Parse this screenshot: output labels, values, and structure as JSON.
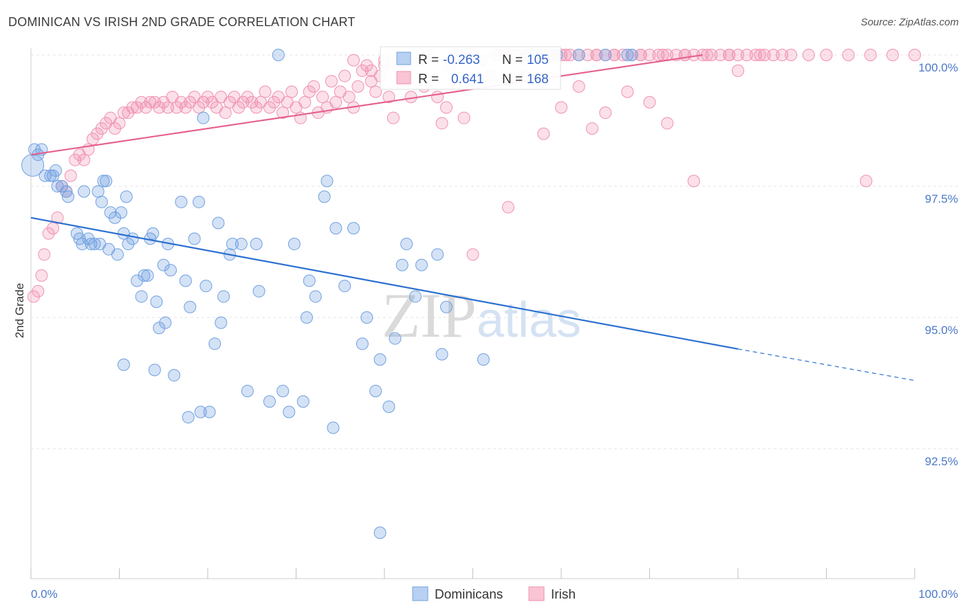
{
  "title": "DOMINICAN VS IRISH 2ND GRADE CORRELATION CHART",
  "source": "Source: ZipAtlas.com",
  "watermark": "ZIPatlas",
  "legend_top": [
    {
      "r_label": "R =",
      "r_value": "-0.263",
      "n_label": "N =",
      "n_value": "105",
      "color": "#6fa0e0"
    },
    {
      "r_label": "R =",
      "r_value": "0.641",
      "n_label": "N =",
      "n_value": "168",
      "color": "#f090b0"
    }
  ],
  "legend_bottom": [
    "Dominicans",
    "Irish"
  ],
  "chart_data": {
    "type": "scatter",
    "ylabel": "2nd Grade",
    "x_tick_labels": [
      "0.0%",
      "100.0%"
    ],
    "y_tick_labels": [
      "100.0%",
      "97.5%",
      "95.0%",
      "92.5%"
    ],
    "xlim": [
      0,
      100
    ],
    "ylim": [
      90.4,
      100.4
    ],
    "grid": true,
    "legend_position": "top-center",
    "colors": {
      "dominicans": "#6fa0e0",
      "irish": "#f090b0",
      "dominicans_line": "#2a6fd0",
      "irish_line": "#e5608e"
    },
    "series": [
      {
        "name": "Dominicans",
        "trend": {
          "x0": 0,
          "y0": 96.9,
          "x1": 80,
          "y1": 94.4,
          "dashed_to_x": 100,
          "dashed_to_y": 93.8
        },
        "points": [
          [
            0.2,
            97.9
          ],
          [
            0.4,
            98.2
          ],
          [
            0.8,
            98.1
          ],
          [
            1.2,
            98.2
          ],
          [
            1.6,
            97.7
          ],
          [
            2.2,
            97.7
          ],
          [
            2.5,
            97.7
          ],
          [
            2.8,
            97.8
          ],
          [
            3.0,
            97.5
          ],
          [
            3.5,
            97.5
          ],
          [
            4.0,
            97.4
          ],
          [
            4.2,
            97.3
          ],
          [
            5.2,
            96.6
          ],
          [
            5.5,
            96.5
          ],
          [
            5.8,
            96.4
          ],
          [
            6.0,
            97.4
          ],
          [
            6.5,
            96.5
          ],
          [
            6.8,
            96.4
          ],
          [
            7.2,
            96.4
          ],
          [
            7.6,
            97.4
          ],
          [
            7.8,
            96.4
          ],
          [
            8.0,
            97.2
          ],
          [
            8.2,
            97.6
          ],
          [
            8.5,
            97.6
          ],
          [
            8.8,
            96.3
          ],
          [
            9.0,
            97.0
          ],
          [
            9.5,
            96.9
          ],
          [
            9.8,
            96.2
          ],
          [
            10.2,
            97.0
          ],
          [
            10.5,
            96.6
          ],
          [
            10.8,
            97.3
          ],
          [
            11.0,
            96.4
          ],
          [
            11.5,
            96.5
          ],
          [
            12.0,
            95.7
          ],
          [
            12.5,
            95.4
          ],
          [
            12.8,
            95.8
          ],
          [
            13.2,
            95.8
          ],
          [
            13.5,
            96.5
          ],
          [
            13.8,
            96.6
          ],
          [
            14.2,
            95.3
          ],
          [
            14.5,
            94.8
          ],
          [
            15.0,
            96.0
          ],
          [
            15.2,
            94.9
          ],
          [
            15.5,
            96.4
          ],
          [
            15.8,
            95.9
          ],
          [
            16.2,
            93.9
          ],
          [
            17.0,
            97.2
          ],
          [
            17.5,
            95.7
          ],
          [
            17.8,
            93.1
          ],
          [
            18.0,
            95.2
          ],
          [
            18.5,
            96.5
          ],
          [
            19.0,
            97.2
          ],
          [
            19.2,
            93.2
          ],
          [
            19.5,
            98.8
          ],
          [
            19.8,
            95.6
          ],
          [
            20.2,
            93.2
          ],
          [
            20.8,
            94.5
          ],
          [
            21.2,
            96.8
          ],
          [
            21.5,
            94.9
          ],
          [
            21.8,
            95.4
          ],
          [
            22.5,
            96.2
          ],
          [
            22.8,
            96.4
          ],
          [
            23.8,
            96.4
          ],
          [
            24.5,
            93.6
          ],
          [
            25.5,
            96.4
          ],
          [
            25.8,
            95.5
          ],
          [
            27.0,
            93.4
          ],
          [
            28.5,
            93.6
          ],
          [
            28.0,
            100.0
          ],
          [
            29.2,
            93.2
          ],
          [
            29.8,
            96.4
          ],
          [
            30.8,
            93.4
          ],
          [
            31.5,
            95.7
          ],
          [
            31.2,
            95.0
          ],
          [
            32.2,
            95.4
          ],
          [
            33.2,
            97.3
          ],
          [
            33.5,
            97.6
          ],
          [
            34.2,
            92.9
          ],
          [
            34.5,
            96.7
          ],
          [
            35.5,
            95.6
          ],
          [
            36.5,
            96.7
          ],
          [
            37.5,
            94.5
          ],
          [
            38.0,
            95.0
          ],
          [
            39.0,
            93.6
          ],
          [
            39.5,
            94.2
          ],
          [
            40.5,
            93.3
          ],
          [
            41.2,
            94.6
          ],
          [
            42.0,
            96.0
          ],
          [
            42.5,
            96.4
          ],
          [
            43.5,
            95.4
          ],
          [
            44.2,
            96.0
          ],
          [
            46.0,
            96.2
          ],
          [
            46.5,
            94.3
          ],
          [
            47.0,
            95.2
          ],
          [
            51.2,
            94.2
          ],
          [
            56.0,
            100.0
          ],
          [
            57.0,
            100.0
          ],
          [
            59.5,
            100.0
          ],
          [
            62.0,
            100.0
          ],
          [
            65.0,
            100.0
          ],
          [
            68.0,
            100.0
          ],
          [
            67.5,
            100.0
          ],
          [
            39.5,
            90.9
          ],
          [
            14.0,
            94.0
          ],
          [
            10.5,
            94.1
          ]
        ]
      },
      {
        "name": "Irish",
        "trend": {
          "x0": 0,
          "y0": 98.1,
          "x1": 76,
          "y1": 100.0
        },
        "points": [
          [
            0.3,
            95.4
          ],
          [
            0.8,
            95.5
          ],
          [
            1.2,
            95.8
          ],
          [
            1.5,
            96.2
          ],
          [
            2.0,
            96.6
          ],
          [
            2.5,
            96.7
          ],
          [
            3.0,
            96.9
          ],
          [
            3.5,
            97.5
          ],
          [
            4.0,
            97.4
          ],
          [
            4.5,
            97.7
          ],
          [
            5.0,
            98.0
          ],
          [
            5.5,
            98.1
          ],
          [
            6.0,
            98.0
          ],
          [
            6.5,
            98.2
          ],
          [
            7.0,
            98.4
          ],
          [
            7.5,
            98.5
          ],
          [
            8.0,
            98.6
          ],
          [
            8.5,
            98.7
          ],
          [
            9.0,
            98.8
          ],
          [
            9.5,
            98.6
          ],
          [
            10.0,
            98.7
          ],
          [
            10.5,
            98.9
          ],
          [
            11.0,
            98.9
          ],
          [
            11.5,
            99.0
          ],
          [
            12.0,
            99.0
          ],
          [
            12.5,
            99.1
          ],
          [
            13.0,
            99.0
          ],
          [
            13.5,
            99.1
          ],
          [
            14.0,
            99.1
          ],
          [
            14.5,
            99.0
          ],
          [
            15.0,
            99.1
          ],
          [
            15.5,
            99.0
          ],
          [
            16.0,
            99.2
          ],
          [
            16.5,
            99.0
          ],
          [
            17.0,
            99.1
          ],
          [
            17.5,
            99.0
          ],
          [
            18.0,
            99.1
          ],
          [
            18.5,
            99.2
          ],
          [
            19.0,
            99.0
          ],
          [
            19.5,
            99.1
          ],
          [
            20.0,
            99.2
          ],
          [
            20.5,
            99.1
          ],
          [
            21.0,
            99.0
          ],
          [
            21.5,
            99.2
          ],
          [
            22.0,
            98.9
          ],
          [
            22.5,
            99.1
          ],
          [
            23.0,
            99.2
          ],
          [
            23.5,
            99.0
          ],
          [
            24.0,
            99.1
          ],
          [
            24.5,
            99.2
          ],
          [
            25.0,
            99.1
          ],
          [
            25.5,
            99.0
          ],
          [
            26.0,
            99.1
          ],
          [
            26.5,
            99.3
          ],
          [
            27.0,
            99.0
          ],
          [
            27.5,
            99.1
          ],
          [
            28.0,
            99.2
          ],
          [
            28.5,
            98.9
          ],
          [
            29.0,
            99.1
          ],
          [
            29.5,
            99.3
          ],
          [
            30.0,
            99.0
          ],
          [
            30.5,
            98.8
          ],
          [
            31.0,
            99.1
          ],
          [
            31.5,
            99.3
          ],
          [
            32.0,
            99.4
          ],
          [
            32.5,
            98.9
          ],
          [
            33.0,
            99.2
          ],
          [
            33.5,
            99.0
          ],
          [
            34.0,
            99.5
          ],
          [
            34.5,
            99.1
          ],
          [
            35.0,
            99.3
          ],
          [
            35.5,
            99.6
          ],
          [
            36.0,
            99.2
          ],
          [
            36.5,
            99.0
          ],
          [
            37.0,
            99.4
          ],
          [
            37.5,
            99.7
          ],
          [
            38.0,
            99.8
          ],
          [
            38.5,
            99.5
          ],
          [
            39.0,
            99.3
          ],
          [
            39.5,
            99.6
          ],
          [
            40.0,
            99.8
          ],
          [
            40.5,
            99.2
          ],
          [
            41.0,
            98.8
          ],
          [
            41.5,
            99.9
          ],
          [
            42.0,
            99.5
          ],
          [
            42.5,
            99.7
          ],
          [
            43.0,
            99.2
          ],
          [
            44.0,
            99.9
          ],
          [
            45.0,
            100.0
          ],
          [
            46.0,
            99.2
          ],
          [
            46.5,
            98.7
          ],
          [
            47.5,
            99.8
          ],
          [
            48.5,
            100.0
          ],
          [
            49.0,
            98.8
          ],
          [
            50.0,
            100.0
          ],
          [
            51.0,
            99.9
          ],
          [
            52.0,
            99.6
          ],
          [
            52.5,
            100.0
          ],
          [
            53.0,
            100.0
          ],
          [
            54.0,
            97.1
          ],
          [
            54.5,
            100.0
          ],
          [
            55.0,
            100.0
          ],
          [
            56.0,
            100.0
          ],
          [
            57.0,
            100.0
          ],
          [
            58.0,
            100.0
          ],
          [
            59.0,
            100.0
          ],
          [
            60.0,
            100.0
          ],
          [
            61.0,
            100.0
          ],
          [
            62.0,
            100.0
          ],
          [
            63.0,
            100.0
          ],
          [
            64.0,
            100.0
          ],
          [
            65.0,
            100.0
          ],
          [
            66.0,
            100.0
          ],
          [
            67.0,
            100.0
          ],
          [
            68.0,
            100.0
          ],
          [
            69.0,
            100.0
          ],
          [
            70.0,
            100.0
          ],
          [
            71.0,
            100.0
          ],
          [
            72.0,
            100.0
          ],
          [
            73.0,
            100.0
          ],
          [
            74.0,
            100.0
          ],
          [
            75.0,
            100.0
          ],
          [
            76.0,
            100.0
          ],
          [
            77.0,
            100.0
          ],
          [
            78.0,
            100.0
          ],
          [
            79.0,
            100.0
          ],
          [
            80.0,
            100.0
          ],
          [
            81.0,
            100.0
          ],
          [
            82.0,
            100.0
          ],
          [
            83.0,
            100.0
          ],
          [
            84.0,
            100.0
          ],
          [
            85.0,
            100.0
          ],
          [
            86.0,
            100.0
          ],
          [
            88.0,
            100.0
          ],
          [
            90.0,
            100.0
          ],
          [
            92.5,
            100.0
          ],
          [
            95.0,
            100.0
          ],
          [
            97.5,
            100.0
          ],
          [
            100.0,
            100.0
          ],
          [
            80.0,
            99.7
          ],
          [
            56.0,
            99.6
          ],
          [
            58.0,
            98.5
          ],
          [
            60.0,
            99.0
          ],
          [
            62.0,
            99.4
          ],
          [
            63.5,
            98.6
          ],
          [
            65.0,
            98.9
          ],
          [
            67.5,
            99.3
          ],
          [
            70.0,
            99.1
          ],
          [
            72.0,
            98.7
          ],
          [
            75.0,
            97.6
          ],
          [
            94.5,
            97.6
          ],
          [
            50.0,
            96.2
          ],
          [
            47.0,
            99.0
          ],
          [
            44.5,
            99.4
          ],
          [
            42.5,
            99.5
          ],
          [
            40.0,
            99.9
          ],
          [
            38.5,
            99.7
          ],
          [
            36.5,
            99.9
          ],
          [
            58.0,
            100.0
          ],
          [
            60.5,
            100.0
          ],
          [
            64.0,
            100.0
          ],
          [
            66.0,
            100.0
          ],
          [
            69.0,
            100.0
          ],
          [
            71.5,
            100.0
          ],
          [
            74.0,
            100.0
          ],
          [
            76.5,
            100.0
          ],
          [
            79.0,
            100.0
          ],
          [
            82.5,
            100.0
          ]
        ]
      }
    ]
  }
}
